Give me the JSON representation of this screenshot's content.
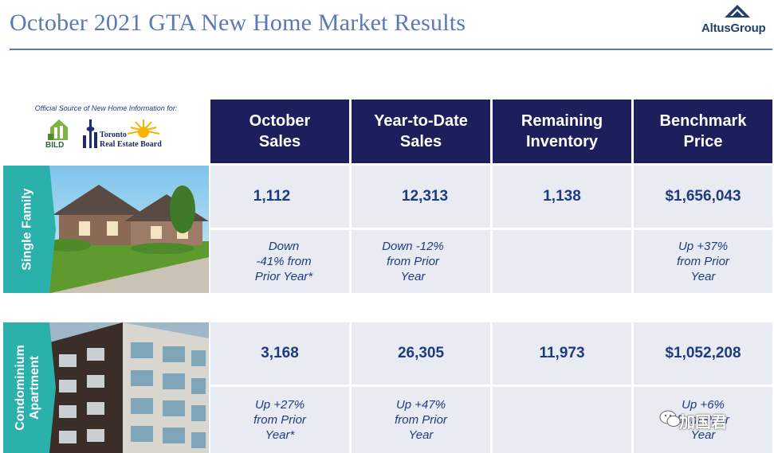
{
  "title": "October 2021 GTA New Home Market Results",
  "brand": {
    "logo_text": "AltusGroup"
  },
  "source": {
    "label": "Official Source of New Home Information for:",
    "bild": "BILD",
    "treb_line1": "Toronto",
    "treb_line2": "Real Estate Board"
  },
  "headers": [
    {
      "line1": "October",
      "line2": "Sales"
    },
    {
      "line1": "Year-to-Date",
      "line2": "Sales"
    },
    {
      "line1": "Remaining",
      "line2": "Inventory"
    },
    {
      "line1": "Benchmark",
      "line2": "Price"
    }
  ],
  "rows": [
    {
      "label": "Single Family",
      "values": [
        "1,112",
        "12,313",
        "1,138",
        "$1,656,043"
      ],
      "changes": [
        [
          "Down",
          "-41% from",
          "Prior Year*"
        ],
        [
          "Down -12%",
          "from Prior",
          "Year"
        ],
        [],
        [
          "Up +37%",
          "from Prior",
          "Year"
        ]
      ]
    },
    {
      "label_line1": "Condominium",
      "label_line2": "Apartment",
      "values": [
        "3,168",
        "26,305",
        "11,973",
        "$1,052,208"
      ],
      "changes": [
        [
          "Up +27%",
          "from Prior",
          "Year*"
        ],
        [
          "Up +47%",
          "from Prior",
          "Year"
        ],
        [],
        [
          "Up +6%",
          "from Prior",
          "Year"
        ]
      ]
    }
  ],
  "watermark": "加国君",
  "colors": {
    "header_bg": "#1c1f5c",
    "cell_bg": "#e9ebf2",
    "accent": "#1f3b80",
    "title": "#5b79b4",
    "teal": "#2bb1ac"
  }
}
